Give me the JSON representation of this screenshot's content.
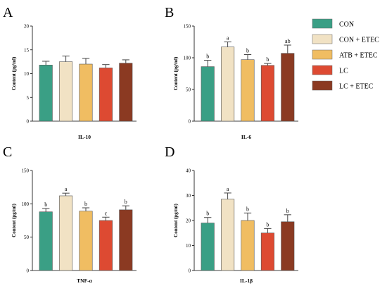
{
  "legend": [
    {
      "label": "CON",
      "color": "#3a9f85"
    },
    {
      "label": "CON + ETEC",
      "color": "#f1e2c4"
    },
    {
      "label": "ATB + ETEC",
      "color": "#f0bd62"
    },
    {
      "label": "LC",
      "color": "#dd4a32"
    },
    {
      "label": "LC + ETEC",
      "color": "#8b3a22"
    }
  ],
  "chart_data": [
    {
      "type": "bar",
      "panel": "A",
      "xlabel": "IL-10",
      "ylabel": "Content (pg/ml)",
      "ylim": [
        0,
        20
      ],
      "yticks": [
        0,
        5,
        10,
        15,
        20
      ],
      "categories": [
        "CON",
        "CON + ETEC",
        "ATB + ETEC",
        "LC",
        "LC + ETEC"
      ],
      "values": [
        11.8,
        12.5,
        12.0,
        11.2,
        12.2
      ],
      "errors": [
        0.8,
        1.2,
        1.2,
        0.7,
        0.7
      ],
      "labels": [
        "",
        "",
        "",
        "",
        ""
      ]
    },
    {
      "type": "bar",
      "panel": "B",
      "xlabel": "IL-6",
      "ylabel": "Content (pg/ml)",
      "ylim": [
        0,
        150
      ],
      "yticks": [
        0,
        50,
        100,
        150
      ],
      "categories": [
        "CON",
        "CON + ETEC",
        "ATB + ETEC",
        "LC",
        "LC + ETEC"
      ],
      "values": [
        86,
        117,
        97,
        88,
        107
      ],
      "errors": [
        10,
        8,
        8,
        3,
        13
      ],
      "labels": [
        "b",
        "a",
        "b",
        "b",
        "ab"
      ]
    },
    {
      "type": "bar",
      "panel": "C",
      "xlabel": "TNF-α",
      "ylabel": "Content (pg/ml)",
      "ylim": [
        0,
        150
      ],
      "yticks": [
        0,
        50,
        100,
        150
      ],
      "categories": [
        "CON",
        "CON + ETEC",
        "ATB + ETEC",
        "LC",
        "LC + ETEC"
      ],
      "values": [
        88,
        112,
        89,
        75,
        91
      ],
      "errors": [
        5,
        4,
        5,
        5,
        6
      ],
      "labels": [
        "b",
        "a",
        "b",
        "c",
        "b"
      ]
    },
    {
      "type": "bar",
      "panel": "D",
      "xlabel": "IL-1β",
      "ylabel": "Content (pg/ml)",
      "ylim": [
        0,
        40
      ],
      "yticks": [
        0,
        10,
        20,
        30,
        40
      ],
      "categories": [
        "CON",
        "CON + ETEC",
        "ATB + ETEC",
        "LC",
        "LC + ETEC"
      ],
      "values": [
        19,
        28.5,
        20,
        15,
        19.5
      ],
      "errors": [
        2.2,
        2.5,
        3,
        1.8,
        2.8
      ],
      "labels": [
        "b",
        "a",
        "b",
        "b",
        "b"
      ]
    }
  ]
}
